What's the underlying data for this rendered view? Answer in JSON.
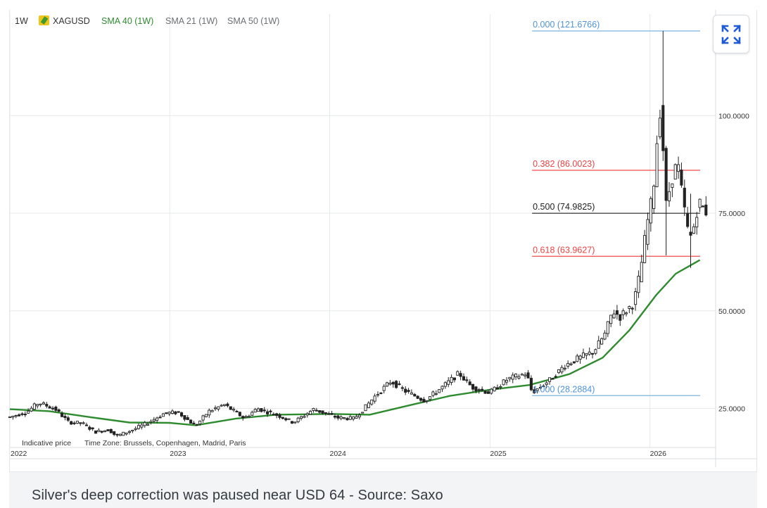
{
  "legend": {
    "interval": "1W",
    "symbol": "XAGUSD",
    "sma40": "SMA 40 (1W)",
    "sma21": "SMA 21 (1W)",
    "sma50": "SMA 50 (1W)"
  },
  "footer": {
    "indicative": "Indicative price",
    "timezone": "Time Zone: Brussels, Copenhagen, Madrid, Paris"
  },
  "caption": "Silver's deep correction was paused near USD 64 - Source: Saxo",
  "colors": {
    "candle": "#222222",
    "sma40": "#2e8b2e",
    "fib_blue": "#7ab4e0",
    "fib_red": "#ef4c4c",
    "fib_mid": "#333333",
    "grid": "#e6e9ec",
    "fib_blue_text": "#4f93d6",
    "fib_red_text": "#e84343"
  },
  "chart_data": {
    "type": "candlestick",
    "title": "XAGUSD",
    "interval": "1W",
    "x_axis": {
      "start": "2022-01-01",
      "end": "2026-05-31",
      "tick_labels": [
        "2022",
        "2023",
        "2024",
        "2025",
        "2026"
      ]
    },
    "y_axis": {
      "min": 15,
      "max": 126,
      "tick_labels": [
        "25.0000",
        "50.0000",
        "75.0000",
        "100.0000"
      ],
      "position": "right"
    },
    "grid": true,
    "fibonacci": [
      {
        "ratio": "0.000",
        "price": 121.6766,
        "label": "0.000 (121.6766)",
        "color": "blue"
      },
      {
        "ratio": "0.382",
        "price": 86.0023,
        "label": "0.382 (86.0023)",
        "color": "red"
      },
      {
        "ratio": "0.500",
        "price": 74.9825,
        "label": "0.500 (74.9825)",
        "color": "dark"
      },
      {
        "ratio": "0.618",
        "price": 63.9627,
        "label": "0.618 (63.9627)",
        "color": "red"
      },
      {
        "ratio": "1.000",
        "price": 28.2884,
        "label": "1.000 (28.2884)",
        "color": "blue"
      }
    ],
    "fib_start_date": "2025-04-07",
    "sma40_points": [
      [
        "2022-01-01",
        24.8
      ],
      [
        "2022-04-01",
        24.3
      ],
      [
        "2022-07-01",
        22.8
      ],
      [
        "2022-10-01",
        21.4
      ],
      [
        "2023-01-01",
        21.3
      ],
      [
        "2023-03-01",
        20.7
      ],
      [
        "2023-06-01",
        22.4
      ],
      [
        "2023-09-01",
        23.4
      ],
      [
        "2024-01-01",
        23.6
      ],
      [
        "2024-04-01",
        23.4
      ],
      [
        "2024-07-01",
        25.8
      ],
      [
        "2024-10-01",
        28.2
      ],
      [
        "2025-01-01",
        29.8
      ],
      [
        "2025-04-01",
        31.0
      ],
      [
        "2025-07-01",
        33.8
      ],
      [
        "2025-09-15",
        38.0
      ],
      [
        "2025-11-15",
        45.0
      ],
      [
        "2026-01-15",
        54.0
      ],
      [
        "2026-03-01",
        59.5
      ],
      [
        "2026-04-25",
        63.0
      ]
    ],
    "price_points": [
      [
        "2022-01-01",
        22.8
      ],
      [
        "2022-02-10",
        24.2
      ],
      [
        "2022-03-08",
        26.5
      ],
      [
        "2022-04-15",
        24.8
      ],
      [
        "2022-05-15",
        21.5
      ],
      [
        "2022-06-15",
        21.2
      ],
      [
        "2022-07-15",
        19.0
      ],
      [
        "2022-08-15",
        19.6
      ],
      [
        "2022-09-01",
        17.9
      ],
      [
        "2022-10-10",
        19.6
      ],
      [
        "2022-11-10",
        21.2
      ],
      [
        "2022-12-20",
        23.8
      ],
      [
        "2023-01-20",
        24.0
      ],
      [
        "2023-03-01",
        20.5
      ],
      [
        "2023-03-30",
        24.2
      ],
      [
        "2023-05-05",
        26.0
      ],
      [
        "2023-06-20",
        22.5
      ],
      [
        "2023-07-20",
        25.0
      ],
      [
        "2023-09-10",
        23.0
      ],
      [
        "2023-10-10",
        21.4
      ],
      [
        "2023-11-25",
        24.8
      ],
      [
        "2024-01-20",
        22.6
      ],
      [
        "2024-02-25",
        22.4
      ],
      [
        "2024-03-20",
        25.0
      ],
      [
        "2024-04-12",
        28.0
      ],
      [
        "2024-05-20",
        32.0
      ],
      [
        "2024-06-20",
        29.5
      ],
      [
        "2024-08-05",
        27.0
      ],
      [
        "2024-09-20",
        31.0
      ],
      [
        "2024-10-22",
        34.0
      ],
      [
        "2024-11-20",
        30.5
      ],
      [
        "2024-12-31",
        29.0
      ],
      [
        "2025-02-10",
        32.5
      ],
      [
        "2025-03-25",
        34.0
      ],
      [
        "2025-04-07",
        29.0
      ],
      [
        "2025-05-20",
        32.5
      ],
      [
        "2025-06-20",
        36.0
      ],
      [
        "2025-07-25",
        38.0
      ],
      [
        "2025-08-25",
        39.5
      ],
      [
        "2025-09-20",
        44.0
      ],
      [
        "2025-10-08",
        50.0
      ],
      [
        "2025-10-25",
        48.5
      ],
      [
        "2025-11-25",
        52.0
      ],
      [
        "2025-12-10",
        60.0
      ],
      [
        "2025-12-25",
        72.0
      ],
      [
        "2026-01-08",
        80.0
      ],
      [
        "2026-01-20",
        98.0
      ],
      [
        "2026-01-27",
        104.0
      ],
      [
        "2026-02-05",
        76.0
      ],
      [
        "2026-02-20",
        84.0
      ],
      [
        "2026-03-05",
        88.0
      ],
      [
        "2026-03-15",
        80.0
      ],
      [
        "2026-04-01",
        68.0
      ],
      [
        "2026-04-12",
        72.0
      ],
      [
        "2026-04-22",
        78.0
      ],
      [
        "2026-05-05",
        76.0
      ],
      [
        "2026-05-15",
        74.5
      ]
    ],
    "notable_wicks": [
      {
        "date": "2026-01-27",
        "high": 121.6766,
        "low": 96
      },
      {
        "date": "2026-02-05",
        "high": 86,
        "low": 64.2
      },
      {
        "date": "2026-04-01",
        "high": 80,
        "low": 61
      }
    ]
  }
}
